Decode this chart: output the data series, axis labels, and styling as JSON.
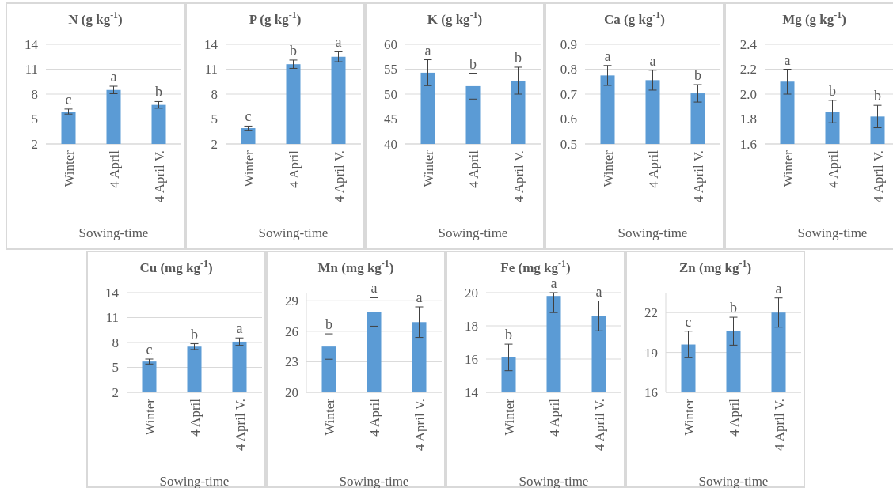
{
  "chart_data": [
    {
      "type": "bar",
      "title": "N (g kg$^{-1}$)",
      "xlabel": "Sowing-time",
      "categories": [
        "Winter",
        "4 April",
        "4 April V."
      ],
      "values": [
        5.9,
        8.5,
        6.7
      ],
      "errors": [
        0.3,
        0.45,
        0.4
      ],
      "color": "#5b9bd5",
      "ylim": [
        2,
        14
      ],
      "yticks": [
        2,
        5,
        8,
        11,
        14
      ],
      "grid": "y",
      "annotations": [
        "c",
        "a",
        "b"
      ]
    },
    {
      "type": "bar",
      "title": "P (g kg$^{-1}$)",
      "xlabel": "Sowing-time",
      "categories": [
        "Winter",
        "4 April",
        "4 April V."
      ],
      "values": [
        3.9,
        11.6,
        12.5
      ],
      "errors": [
        0.25,
        0.5,
        0.6
      ],
      "color": "#5b9bd5",
      "ylim": [
        2,
        14
      ],
      "yticks": [
        2,
        5,
        8,
        11,
        14
      ],
      "grid": "y",
      "annotations": [
        "c",
        "b",
        "a"
      ]
    },
    {
      "type": "bar",
      "title": "K (g kg$^{-1}$)",
      "xlabel": "Sowing-time",
      "categories": [
        "Winter",
        "4 April",
        "4 April V."
      ],
      "values": [
        54.3,
        51.6,
        52.7
      ],
      "errors": [
        2.6,
        2.6,
        2.7
      ],
      "color": "#5b9bd5",
      "ylim": [
        40,
        60
      ],
      "yticks": [
        40,
        45,
        50,
        55,
        60
      ],
      "grid": "y",
      "annotations": [
        "a",
        "b",
        "b"
      ]
    },
    {
      "type": "bar",
      "title": "Ca (g kg$^{-1}$)",
      "xlabel": "Sowing-time",
      "categories": [
        "Winter",
        "4 April",
        "4 April V."
      ],
      "values": [
        0.775,
        0.756,
        0.703
      ],
      "errors": [
        0.04,
        0.04,
        0.035
      ],
      "color": "#5b9bd5",
      "ylim": [
        0.5,
        0.9
      ],
      "yticks": [
        0.5,
        0.6,
        0.7,
        0.8,
        0.9
      ],
      "grid": "y",
      "annotations": [
        "a",
        "a",
        "b"
      ]
    },
    {
      "type": "bar",
      "title": "Mg (g kg$^{-1}$)",
      "xlabel": "Sowing-time",
      "categories": [
        "Winter",
        "4 April",
        "4 April V."
      ],
      "values": [
        2.1,
        1.86,
        1.82
      ],
      "errors": [
        0.1,
        0.09,
        0.09
      ],
      "color": "#5b9bd5",
      "ylim": [
        1.6,
        2.4
      ],
      "yticks": [
        {
          "value": 1.6,
          "label": "1.6"
        },
        {
          "value": 1.8,
          "label": "1.8"
        },
        {
          "value": 2.0,
          "label": "2.0"
        },
        {
          "value": 2.2,
          "label": "2.2"
        },
        {
          "value": 2.4,
          "label": "2.4"
        }
      ],
      "grid": "y",
      "annotations": [
        "a",
        "b",
        "b"
      ]
    },
    {
      "type": "bar",
      "title": "Cu (mg kg$^{-1}$)",
      "xlabel": "Sowing-time",
      "categories": [
        "Winter",
        "4 April",
        "4 April V."
      ],
      "values": [
        5.7,
        7.5,
        8.1
      ],
      "errors": [
        0.3,
        0.35,
        0.45
      ],
      "color": "#5b9bd5",
      "ylim": [
        2,
        14
      ],
      "yticks": [
        2,
        5,
        8,
        11,
        14
      ],
      "grid": "y",
      "annotations": [
        "c",
        "b",
        "a"
      ]
    },
    {
      "type": "bar",
      "title": "Mn (mg kg$^{-1}$)",
      "xlabel": "Sowing-time",
      "categories": [
        "Winter",
        "4 April",
        "4 April V."
      ],
      "values": [
        24.5,
        27.9,
        26.9
      ],
      "errors": [
        1.25,
        1.4,
        1.5
      ],
      "color": "#5b9bd5",
      "ylim": [
        20,
        29.8
      ],
      "yticks": [
        20,
        23,
        26,
        29
      ],
      "grid": "y",
      "annotations": [
        "b",
        "a",
        "a"
      ]
    },
    {
      "type": "bar",
      "title": "Fe (mg kg$^{-1}$)",
      "xlabel": "Sowing-time",
      "categories": [
        "Winter",
        "4 April",
        "4 April V."
      ],
      "values": [
        16.1,
        19.8,
        18.6
      ],
      "errors": [
        0.8,
        [
          18.8,
          20
        ],
        0.9
      ],
      "color": "#5b9bd5",
      "ylim": [
        14,
        20
      ],
      "yticks": [
        14,
        16,
        18,
        20
      ],
      "grid": "y",
      "annotations": [
        "b",
        "a",
        "a"
      ]
    },
    {
      "type": "bar",
      "title": "Zn  (mg kg$^{-1}$)",
      "xlabel": "Sowing-time",
      "categories": [
        "Winter",
        "4 April",
        "4 April V."
      ],
      "values": [
        19.6,
        20.6,
        22.0
      ],
      "errors": [
        1.0,
        1.05,
        1.1
      ],
      "color": "#5b9bd5",
      "ylim": [
        16,
        23.5
      ],
      "yticks": [
        16,
        19,
        22
      ],
      "grid": "y",
      "annotations": [
        "c",
        "b",
        "a"
      ]
    }
  ]
}
